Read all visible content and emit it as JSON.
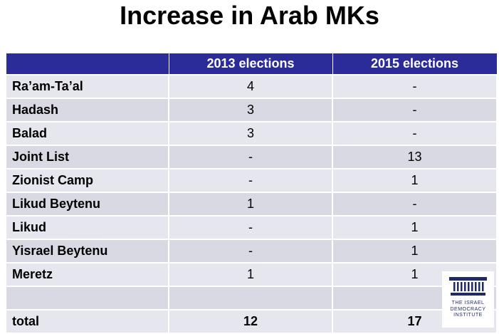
{
  "title": "Increase in Arab MKs",
  "table": {
    "headers": [
      "",
      "2013 elections",
      "2015 elections"
    ],
    "rows": [
      {
        "party": "Ra’am-Ta’al",
        "y2013": "4",
        "y2015": "-"
      },
      {
        "party": "Hadash",
        "y2013": "3",
        "y2015": "-"
      },
      {
        "party": "Balad",
        "y2013": "3",
        "y2015": "-"
      },
      {
        "party": "Joint List",
        "y2013": "-",
        "y2015": "13"
      },
      {
        "party": "Zionist Camp",
        "y2013": "-",
        "y2015": "1"
      },
      {
        "party": "Likud Beytenu",
        "y2013": "1",
        "y2015": "-"
      },
      {
        "party": "Likud",
        "y2013": "-",
        "y2015": "1"
      },
      {
        "party": "Yisrael Beytenu",
        "y2013": "-",
        "y2015": "1"
      },
      {
        "party": "Meretz",
        "y2013": "1",
        "y2015": "1"
      },
      {
        "party": "",
        "y2013": "",
        "y2015": ""
      },
      {
        "party": "total",
        "y2013": "12",
        "y2015": "17"
      }
    ]
  },
  "logo": {
    "line1": "THE ISRAEL",
    "line2": "DEMOCRACY",
    "line3": "INSTITUTE",
    "color": "#1f2a6b"
  }
}
